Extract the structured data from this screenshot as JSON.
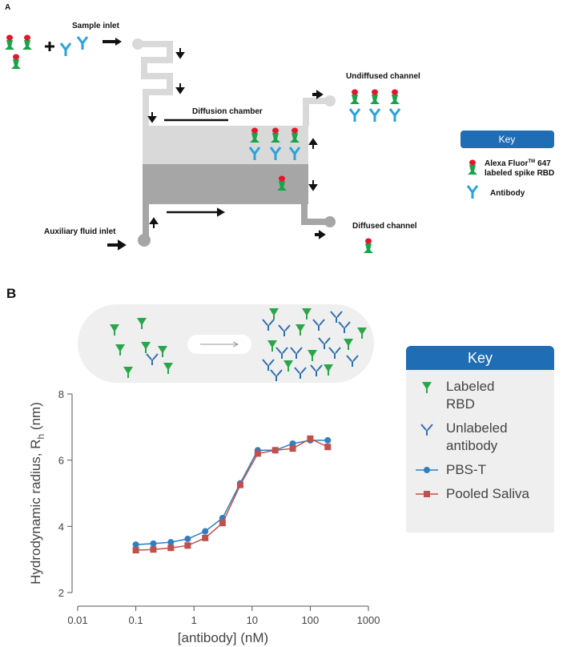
{
  "panel_a": {
    "label": "A",
    "sample_inlet": "Sample inlet",
    "diffusion_chamber": "Diffusion chamber",
    "undiffused_channel": "Undiffused channel",
    "auxiliary_inlet": "Auxiliary fluid inlet",
    "diffused_channel": "Diffused channel",
    "key": {
      "title": "Key",
      "rbd": {
        "brand": "Alexa Fluor",
        "mark": "TM",
        "number": "647",
        "line2": "labeled spike RBD"
      },
      "antibody": "Antibody"
    }
  },
  "panel_b": {
    "label": "B",
    "key": {
      "title": "Key",
      "rbd": "Labeled RBD",
      "antibody": "Unlabeled antibody"
    }
  },
  "chart_data": {
    "type": "line",
    "x_label": "[antibody] (nM)",
    "y_label": [
      "Hydrodynamic radius, ",
      "R",
      "h",
      " (nm)"
    ],
    "x": [
      0.1,
      0.2,
      0.4,
      0.78,
      1.56,
      3.1,
      6.25,
      12.5,
      25,
      50,
      100,
      200
    ],
    "xlog": true,
    "xlim": [
      0.01,
      1000
    ],
    "xticks": [
      0.01,
      0.1,
      1,
      10,
      100,
      1000
    ],
    "ylim": [
      2,
      8
    ],
    "yticks": [
      2,
      4,
      6,
      8
    ],
    "series": [
      {
        "name": "PBS-T",
        "color": "#2f7fc1",
        "marker": "circle",
        "values": [
          3.45,
          3.48,
          3.52,
          3.62,
          3.85,
          4.25,
          5.3,
          6.3,
          6.3,
          6.5,
          6.6,
          6.6
        ]
      },
      {
        "name": "Pooled Saliva",
        "color": "#c0504d",
        "marker": "square",
        "values": [
          3.28,
          3.3,
          3.35,
          3.42,
          3.65,
          4.1,
          5.25,
          6.2,
          6.3,
          6.35,
          6.65,
          6.4
        ]
      }
    ]
  }
}
